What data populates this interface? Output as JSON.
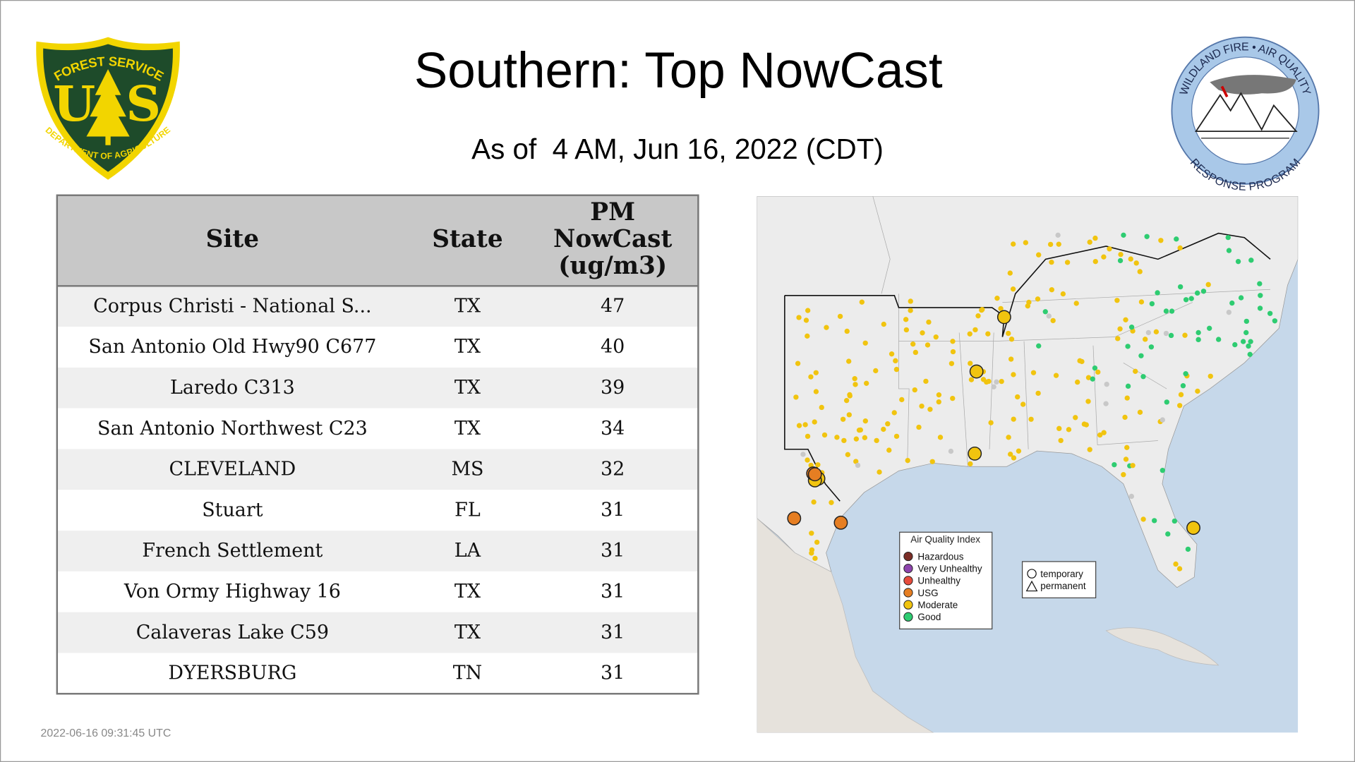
{
  "header": {
    "title": "Southern: Top NowCast",
    "subtitle": "As of  4 AM, Jun 16, 2022 (CDT)"
  },
  "logos": {
    "usfs": {
      "top": "FOREST SERVICE",
      "letters": [
        "U",
        "S"
      ],
      "bottom": "DEPARTMENT OF AGRICULTURE"
    },
    "wfaq": {
      "top": "WILDLAND FIRE • AIR QUALITY",
      "bottom": "RESPONSE PROGRAM"
    }
  },
  "table": {
    "columns": [
      "Site",
      "State",
      [
        "PM",
        "NowCast",
        "(ug/m3)"
      ]
    ],
    "rows": [
      [
        "Corpus Christi - National S...",
        "TX",
        47
      ],
      [
        "San Antonio Old Hwy90 C677",
        "TX",
        40
      ],
      [
        "Laredo C313",
        "TX",
        39
      ],
      [
        "San Antonio Northwest C23",
        "TX",
        34
      ],
      [
        "CLEVELAND",
        "MS",
        32
      ],
      [
        "Stuart",
        "FL",
        31
      ],
      [
        "French Settlement",
        "LA",
        31
      ],
      [
        "Von Ormy Highway 16",
        "TX",
        31
      ],
      [
        "Calaveras Lake C59",
        "TX",
        31
      ],
      [
        "DYERSBURG",
        "TN",
        31
      ]
    ]
  },
  "map": {
    "legend": {
      "title": "Air Quality Index",
      "items": [
        {
          "label": "Hazardous",
          "color": "#7b2d26"
        },
        {
          "label": "Very Unhealthy",
          "color": "#8e44ad"
        },
        {
          "label": "Unhealthy",
          "color": "#e74c3c"
        },
        {
          "label": "USG",
          "color": "#e67e22"
        },
        {
          "label": "Moderate",
          "color": "#f1c40f"
        },
        {
          "label": "Good",
          "color": "#2ecc71"
        }
      ]
    },
    "shape_legend": [
      "temporary",
      "permanent"
    ]
  },
  "footer": {
    "timestamp": "2022-06-16 09:31:45 UTC"
  }
}
